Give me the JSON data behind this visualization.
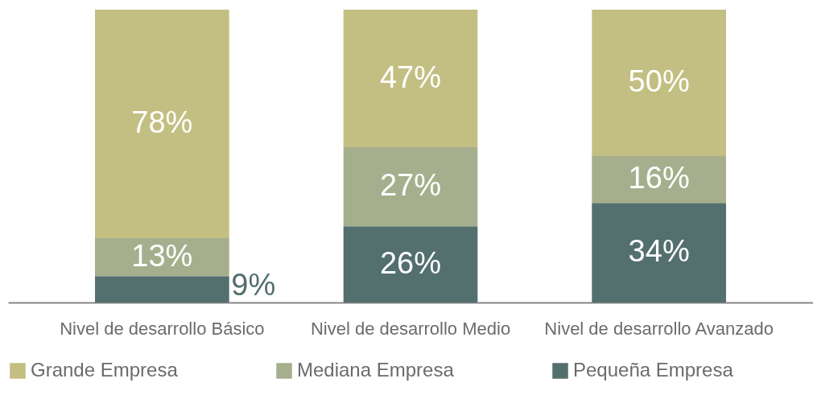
{
  "chart_data": {
    "type": "bar",
    "stacked": true,
    "legend": "bottom",
    "categories": [
      "Nivel de desarrollo Básico",
      "Nivel de desarrollo Medio",
      "Nivel de desarrollo Avanzado"
    ],
    "series": [
      {
        "name": "Pequeña Empresa",
        "color": "#536f6e",
        "values": [
          9,
          26,
          34
        ],
        "value_labels": [
          "9%",
          "26%",
          "34%"
        ]
      },
      {
        "name": "Mediana Empresa",
        "color": "#a6af8d",
        "values": [
          13,
          27,
          16
        ],
        "value_labels": [
          "13%",
          "27%",
          "16%"
        ]
      },
      {
        "name": "Grande Empresa",
        "color": "#c3bf82",
        "values": [
          78,
          47,
          50
        ],
        "value_labels": [
          "78%",
          "47%",
          "50%"
        ]
      }
    ]
  }
}
